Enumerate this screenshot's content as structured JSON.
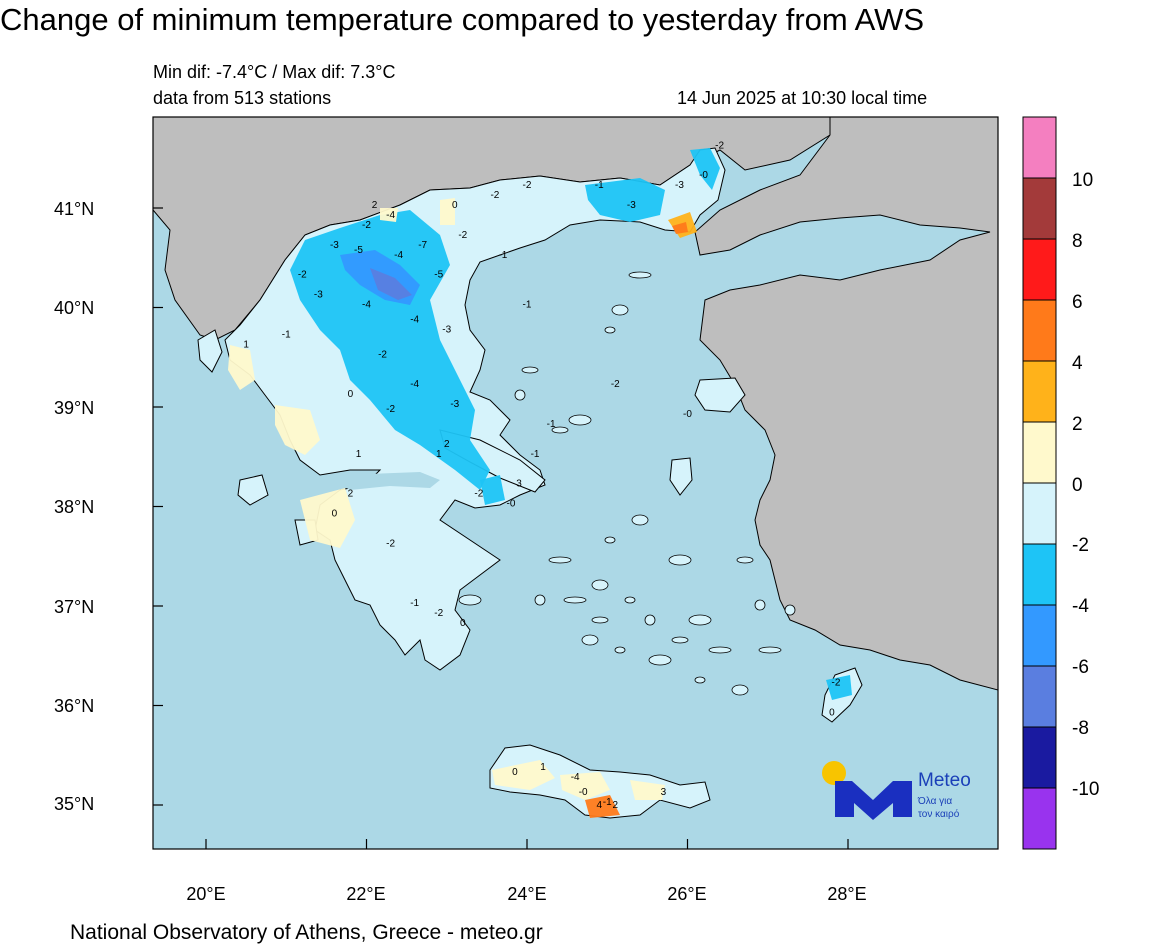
{
  "title": "Change of minimum temperature compared to yesterday from AWS",
  "stats_line": "Min dif: -7.4°C / Max dif: 7.3°C",
  "stations_line": "data from 513 stations",
  "timestamp": "14 Jun 2025 at 10:30 local time",
  "footer": "National Observatory of Athens, Greece - meteo.gr",
  "lat_labels": [
    "41°N",
    "40°N",
    "39°N",
    "38°N",
    "37°N",
    "36°N",
    "35°N"
  ],
  "lon_labels": [
    "20°E",
    "22°E",
    "24°E",
    "26°E",
    "28°E"
  ],
  "colorbar": {
    "labels": [
      "10",
      "8",
      "6",
      "4",
      "2",
      "0",
      "-2",
      "-4",
      "-6",
      "-8",
      "-10"
    ],
    "colors": [
      "#f47fc0",
      "#a33a3a",
      "#ff1a1a",
      "#ff7a1a",
      "#ffb21a",
      "#fff9cc",
      "#d6f3fb",
      "#1ec4f6",
      "#3399ff",
      "#5a7ee0",
      "#1a1aa0",
      "#9933ee"
    ]
  },
  "map_colors": {
    "sea": "#acd8e6",
    "land_other": "#bebebe",
    "greece": "#d6f3fb",
    "cool_2": "#1ec4f6",
    "cool_4": "#3399ff",
    "cool_6": "#5a7ee0",
    "warm_0": "#fff9cc",
    "warm_2": "#ffb21a",
    "warm_4": "#ff7a1a"
  },
  "logo": {
    "brand": "Meteo",
    "tagline_1": "Όλα για",
    "tagline_2": "τον καιρό"
  },
  "station_values": [
    {
      "lon": 22.7,
      "lat": 40.6,
      "text": "-7"
    },
    {
      "lon": 22.9,
      "lat": 40.3,
      "text": "-5"
    },
    {
      "lon": 21.9,
      "lat": 40.55,
      "text": "-5"
    },
    {
      "lon": 22.4,
      "lat": 40.5,
      "text": "-4"
    },
    {
      "lon": 22.3,
      "lat": 40.9,
      "text": "-4"
    },
    {
      "lon": 22.0,
      "lat": 40.8,
      "text": "-2"
    },
    {
      "lon": 21.6,
      "lat": 40.6,
      "text": "-3"
    },
    {
      "lon": 21.4,
      "lat": 40.1,
      "text": "-3"
    },
    {
      "lon": 22.0,
      "lat": 40.0,
      "text": "-4"
    },
    {
      "lon": 22.6,
      "lat": 39.85,
      "text": "-4"
    },
    {
      "lon": 23.0,
      "lat": 39.75,
      "text": "-3"
    },
    {
      "lon": 22.2,
      "lat": 39.5,
      "text": "-2"
    },
    {
      "lon": 22.6,
      "lat": 39.2,
      "text": "-4"
    },
    {
      "lon": 23.1,
      "lat": 39.0,
      "text": "-3"
    },
    {
      "lon": 22.3,
      "lat": 38.95,
      "text": "-2"
    },
    {
      "lon": 21.8,
      "lat": 39.1,
      "text": "0"
    },
    {
      "lon": 21.0,
      "lat": 39.7,
      "text": "-1"
    },
    {
      "lon": 20.5,
      "lat": 39.6,
      "text": "1"
    },
    {
      "lon": 21.2,
      "lat": 40.3,
      "text": "-2"
    },
    {
      "lon": 22.1,
      "lat": 41.0,
      "text": "2"
    },
    {
      "lon": 23.1,
      "lat": 41.0,
      "text": "0"
    },
    {
      "lon": 23.6,
      "lat": 41.1,
      "text": "-2"
    },
    {
      "lon": 24.0,
      "lat": 41.2,
      "text": "-2"
    },
    {
      "lon": 24.9,
      "lat": 41.2,
      "text": "-1"
    },
    {
      "lon": 25.3,
      "lat": 41.0,
      "text": "-3"
    },
    {
      "lon": 25.9,
      "lat": 41.2,
      "text": "-3"
    },
    {
      "lon": 26.4,
      "lat": 41.6,
      "text": "-2"
    },
    {
      "lon": 26.2,
      "lat": 41.3,
      "text": "-0"
    },
    {
      "lon": 23.7,
      "lat": 40.5,
      "text": "-1"
    },
    {
      "lon": 23.2,
      "lat": 40.7,
      "text": "-2"
    },
    {
      "lon": 21.9,
      "lat": 38.5,
      "text": "1"
    },
    {
      "lon": 21.8,
      "lat": 38.1,
      "text": "2"
    },
    {
      "lon": 21.6,
      "lat": 37.9,
      "text": "0"
    },
    {
      "lon": 22.3,
      "lat": 37.6,
      "text": "-2"
    },
    {
      "lon": 22.6,
      "lat": 37.0,
      "text": "-1"
    },
    {
      "lon": 22.9,
      "lat": 36.9,
      "text": "-2"
    },
    {
      "lon": 23.2,
      "lat": 36.8,
      "text": "0"
    },
    {
      "lon": 23.4,
      "lat": 38.1,
      "text": "-2"
    },
    {
      "lon": 23.8,
      "lat": 38.0,
      "text": "-0"
    },
    {
      "lon": 24.1,
      "lat": 38.5,
      "text": "-1"
    },
    {
      "lon": 22.9,
      "lat": 38.5,
      "text": "1"
    },
    {
      "lon": 23.0,
      "lat": 38.6,
      "text": "2"
    },
    {
      "lon": 23.9,
      "lat": 38.2,
      "text": "3"
    },
    {
      "lon": 24.6,
      "lat": 35.25,
      "text": "-4"
    },
    {
      "lon": 24.7,
      "lat": 35.1,
      "text": "-0"
    },
    {
      "lon": 25.0,
      "lat": 35.0,
      "text": "-1"
    },
    {
      "lon": 24.9,
      "lat": 34.97,
      "text": "4"
    },
    {
      "lon": 25.1,
      "lat": 34.97,
      "text": "2"
    },
    {
      "lon": 25.7,
      "lat": 35.1,
      "text": "3"
    },
    {
      "lon": 23.85,
      "lat": 35.3,
      "text": "0"
    },
    {
      "lon": 24.2,
      "lat": 35.35,
      "text": "1"
    },
    {
      "lon": 27.85,
      "lat": 36.2,
      "text": "-2"
    },
    {
      "lon": 27.8,
      "lat": 35.9,
      "text": "0"
    },
    {
      "lon": 25.1,
      "lat": 39.2,
      "text": "-2"
    },
    {
      "lon": 26.0,
      "lat": 38.9,
      "text": "-0"
    },
    {
      "lon": 24.0,
      "lat": 40.0,
      "text": "-1"
    },
    {
      "lon": 24.3,
      "lat": 38.8,
      "text": "-1"
    }
  ]
}
